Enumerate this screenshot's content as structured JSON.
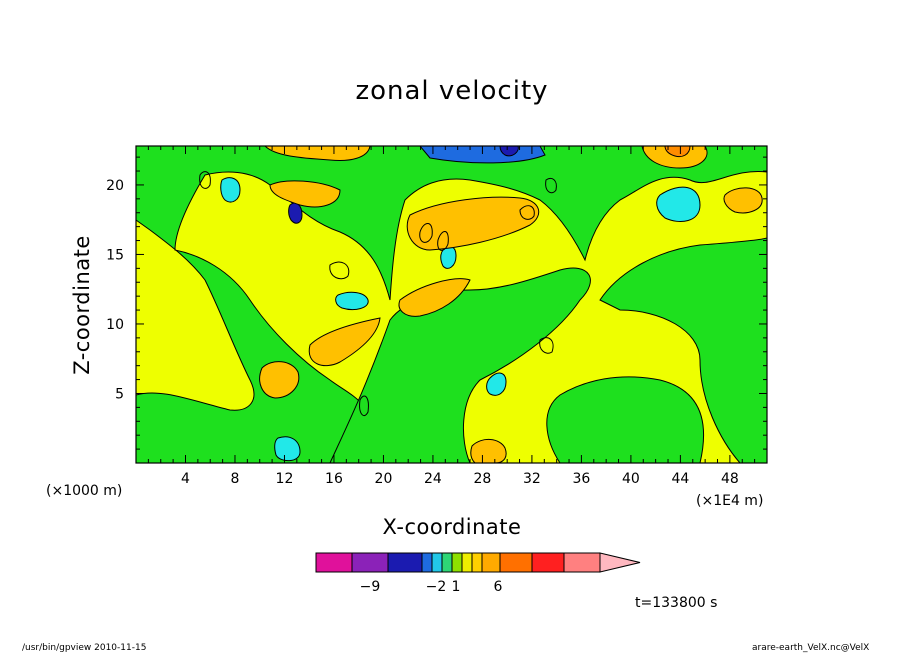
{
  "chart_data": {
    "type": "heatmap",
    "title": "zonal velocity",
    "xlabel": "X-coordinate",
    "ylabel": "Z-coordinate",
    "x_unit": "(×1E4 m)",
    "y_unit": "(×1000 m)",
    "xlim": [
      0,
      51
    ],
    "ylim": [
      0,
      22.8
    ],
    "x_ticks": [
      4,
      8,
      12,
      16,
      20,
      24,
      28,
      32,
      36,
      40,
      44,
      48
    ],
    "y_ticks": [
      5,
      10,
      15,
      20
    ],
    "colorbar": {
      "tick_labels": [
        {
          "label": "−9",
          "value": -9
        },
        {
          "label": "−2",
          "value": -2
        },
        {
          "label": "1",
          "value": 1
        },
        {
          "label": "6",
          "value": 6
        }
      ],
      "colors": [
        "#e0119b",
        "#8b22b8",
        "#1b1bb0",
        "#1e6be0",
        "#22c8e8",
        "#2ed676",
        "#8ee000",
        "#eeee00",
        "#ffd000",
        "#ffaa00",
        "#ff7000",
        "#ff2020",
        "#ff8080",
        "#ffb8c0"
      ]
    },
    "field_colors": {
      "background": "#eeff00",
      "negative_weak": "#1ee01e",
      "negative_mid": "#22e8e8",
      "negative_strong": "#1e6be0",
      "negative_max": "#1b1bb0",
      "positive_mid": "#ffc000",
      "positive_strong": "#ff8c00"
    }
  },
  "annotations": {
    "timestamp": "t=133800 s"
  },
  "footer": {
    "left": "/usr/bin/gpview  2010-11-15",
    "right": "arare-earth_VelX.nc@VelX"
  }
}
